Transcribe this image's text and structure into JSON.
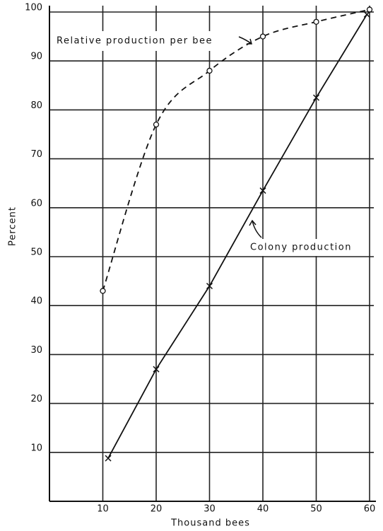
{
  "chart_data": {
    "type": "line",
    "x_label": "Thousand bees",
    "y_label": "Percent",
    "annotations": [
      "Relative production per bee",
      "Colony production"
    ],
    "series": [
      {
        "name": "Relative production per bee",
        "color": "#111111",
        "line_style": "dashed",
        "marker": "o",
        "x": [
          10,
          20,
          30,
          40,
          50,
          60
        ],
        "values": [
          43,
          77,
          88,
          95,
          98,
          100.5
        ]
      },
      {
        "name": "Colony production",
        "color": "#111111",
        "line_style": "solid",
        "marker": "x",
        "x": [
          11,
          20,
          30,
          40,
          50,
          59.5
        ],
        "values": [
          8.8,
          27,
          44,
          63.5,
          82.5,
          99.5
        ]
      }
    ],
    "xlim": [
      0,
      60
    ],
    "xticks": [
      10,
      20,
      30,
      40,
      50,
      60
    ],
    "ylim": [
      0,
      100
    ],
    "yticks": [
      10,
      20,
      30,
      40,
      50,
      60,
      70,
      80,
      90,
      100
    ],
    "grid": true
  }
}
